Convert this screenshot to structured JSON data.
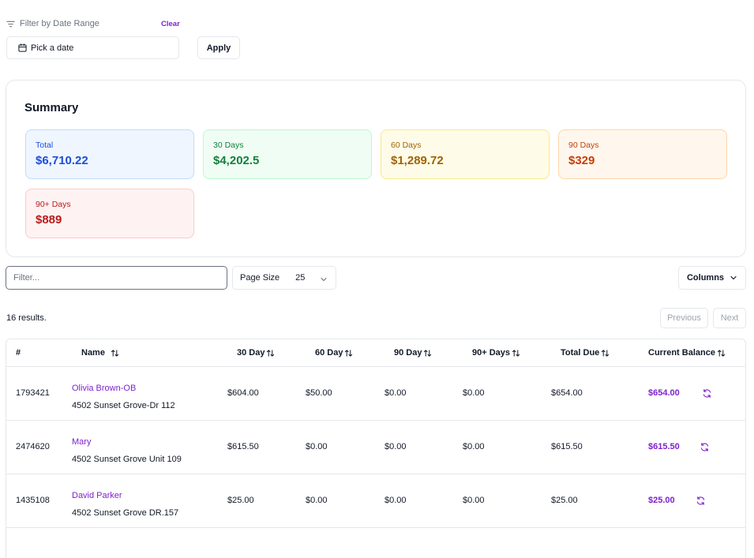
{
  "filter": {
    "label": "Filter by Date Range",
    "clear_label": "Clear",
    "date_placeholder": "Pick a date",
    "apply_label": "Apply"
  },
  "summary": {
    "title": "Summary",
    "cards": [
      {
        "label": "Total",
        "value": "$6,710.22"
      },
      {
        "label": "30 Days",
        "value": "$4,202.5"
      },
      {
        "label": "60 Days",
        "value": "$1,289.72"
      },
      {
        "label": "90 Days",
        "value": "$329"
      },
      {
        "label": "90+ Days",
        "value": "$889"
      }
    ]
  },
  "toolbar": {
    "filter_placeholder": "Filter...",
    "page_size_label": "Page Size",
    "page_size_value": "25",
    "columns_label": "Columns"
  },
  "pagination": {
    "results_text": "16 results.",
    "previous_label": "Previous",
    "next_label": "Next"
  },
  "table": {
    "headers": [
      "#",
      "Name",
      "30 Day",
      "60 Day",
      "90 Day",
      "90+ Days",
      "Total Due",
      "Current Balance"
    ],
    "rows": [
      {
        "id": "1793421",
        "name": "Olivia Brown-OB",
        "address": "4502 Sunset Grove-Dr 112",
        "d30": "$604.00",
        "d60": "$50.00",
        "d90": "$0.00",
        "d90p": "$0.00",
        "total": "$654.00",
        "balance": "$654.00"
      },
      {
        "id": "2474620",
        "name": "Mary",
        "address": "4502 Sunset Grove Unit 109",
        "d30": "$615.50",
        "d60": "$0.00",
        "d90": "$0.00",
        "d90p": "$0.00",
        "total": "$615.50",
        "balance": "$615.50"
      },
      {
        "id": "1435108",
        "name": "David Parker",
        "address": "4502 Sunset Grove DR.157",
        "d30": "$25.00",
        "d60": "$0.00",
        "d90": "$0.00",
        "d90p": "$0.00",
        "total": "$25.00",
        "balance": "$25.00"
      }
    ]
  },
  "colors": {
    "accent": "#7e22ce",
    "border": "#e5e7eb"
  },
  "icons": [
    "filter-icon",
    "calendar-icon",
    "chevron-down-icon",
    "sort-icon",
    "refresh-icon"
  ]
}
